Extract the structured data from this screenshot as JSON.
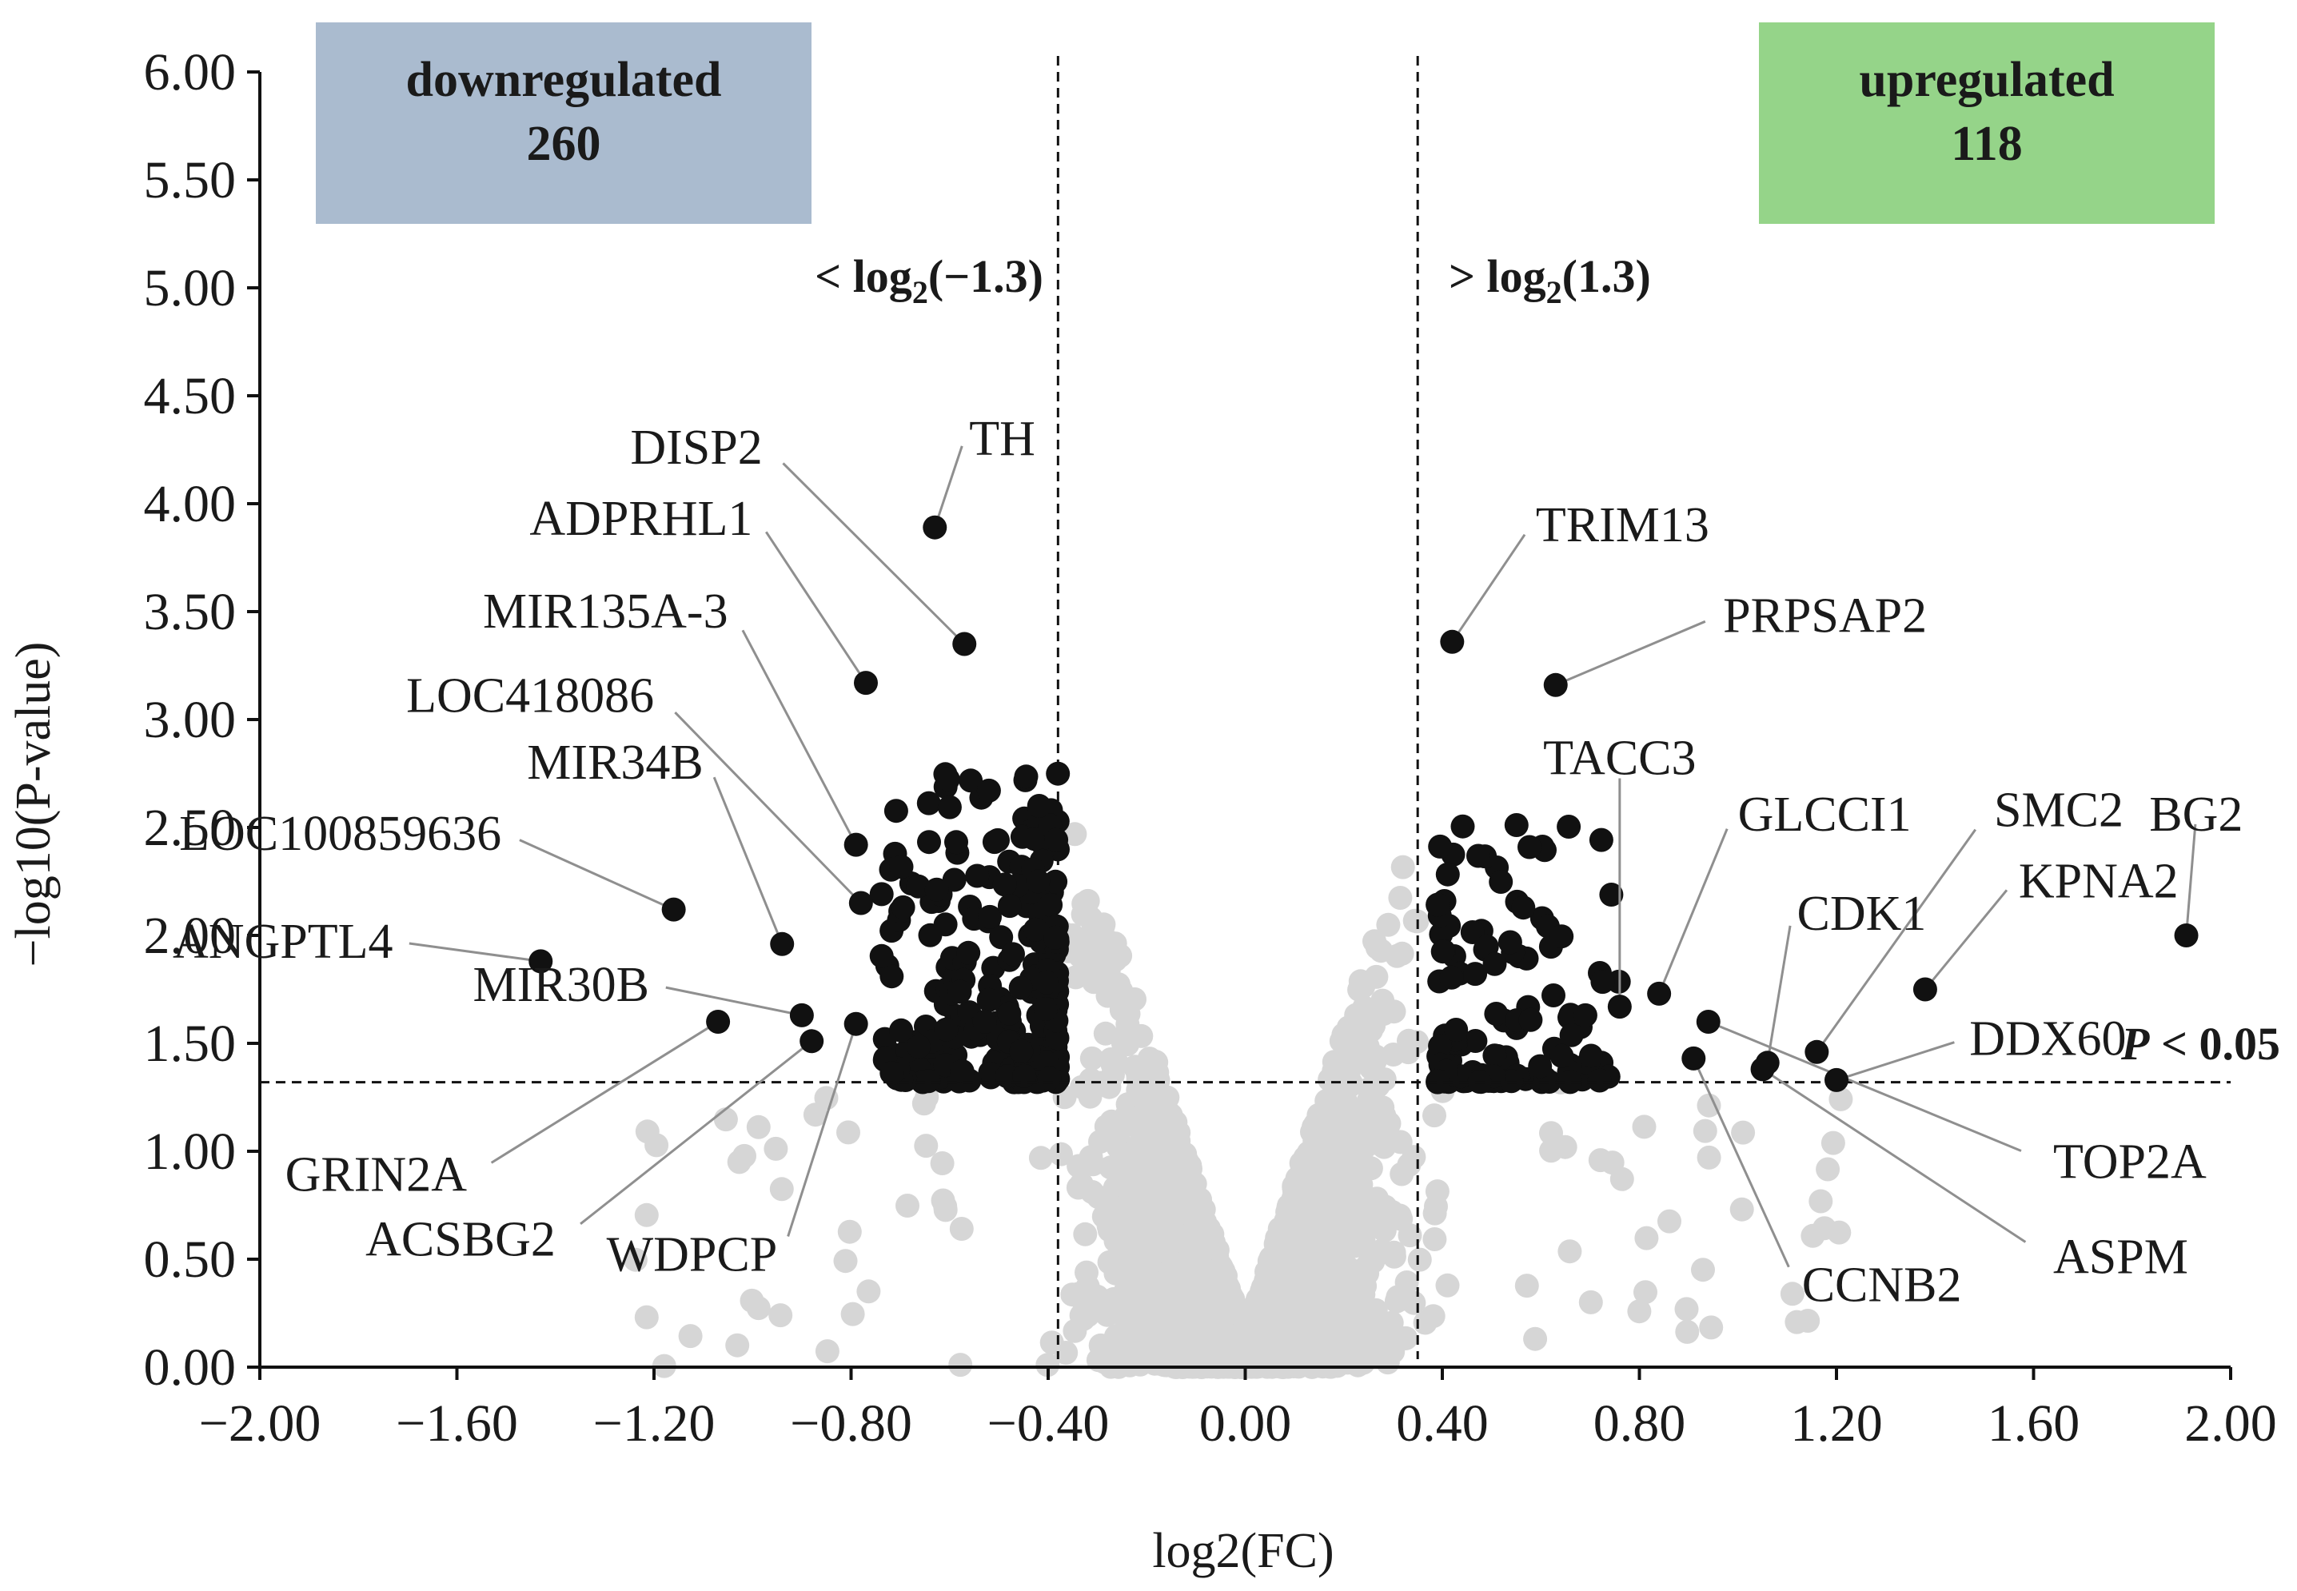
{
  "chart_data": {
    "type": "scatter",
    "title": "",
    "xlabel": "log2(FC)",
    "ylabel": "−log10(P-value)",
    "xlim": [
      -2.0,
      2.0
    ],
    "ylim": [
      0.0,
      6.0
    ],
    "x_ticks": [
      -2.0,
      -1.6,
      -1.2,
      -0.8,
      -0.4,
      0.0,
      0.4,
      0.8,
      1.2,
      1.6,
      2.0
    ],
    "x_tick_labels": [
      "−2.00",
      "−1.60",
      "−1.20",
      "−0.80",
      "−0.40",
      "0.00",
      "0.40",
      "0.80",
      "1.20",
      "1.60",
      "2.00"
    ],
    "y_ticks": [
      0.0,
      0.5,
      1.0,
      1.5,
      2.0,
      2.5,
      3.0,
      3.5,
      4.0,
      4.5,
      5.0,
      5.5,
      6.0
    ],
    "y_tick_labels": [
      "0.00",
      "0.50",
      "1.00",
      "1.50",
      "2.00",
      "2.50",
      "3.00",
      "3.50",
      "4.00",
      "4.50",
      "5.00",
      "5.50",
      "6.00"
    ],
    "thresholds": {
      "fc_low": -0.38,
      "fc_high": 0.35,
      "p": 1.32,
      "fc_low_label_prefix": "< log",
      "fc_low_label_sub": "2",
      "fc_low_label_suffix": "(−1.3)",
      "fc_high_label_prefix": "> log",
      "fc_high_label_sub": "2",
      "fc_high_label_suffix": "(1.3)",
      "p_label_italic": "P",
      "p_label_rest": " < 0.05"
    },
    "boxes": {
      "down": {
        "title": "downregulated",
        "count": "260",
        "color": "#aabbcf"
      },
      "up": {
        "title": "upregulated",
        "count": "118",
        "color": "#95d489"
      }
    },
    "colors": {
      "significant": "#111111",
      "nonsignificant": "#d6d6d6",
      "leader": "#8f8f8f"
    },
    "labeled_genes": [
      {
        "name": "TH",
        "x": -0.63,
        "y": 3.89,
        "label_x": -0.57,
        "label_y": 4.3
      },
      {
        "name": "DISP2",
        "x": -0.57,
        "y": 3.35,
        "label_x": -0.97,
        "label_y": 4.26
      },
      {
        "name": "ADPRHL1",
        "x": -0.77,
        "y": 3.17,
        "label_x": -0.99,
        "label_y": 3.93
      },
      {
        "name": "MIR135A-3",
        "x": -0.79,
        "y": 2.42,
        "label_x": -1.04,
        "label_y": 3.5
      },
      {
        "name": "LOC418086",
        "x": -0.78,
        "y": 2.15,
        "label_x": -1.19,
        "label_y": 3.11
      },
      {
        "name": "MIR34B",
        "x": -0.94,
        "y": 1.96,
        "label_x": -1.09,
        "label_y": 2.8
      },
      {
        "name": "LOC100859636",
        "x": -1.16,
        "y": 2.12,
        "label_x": -1.5,
        "label_y": 2.47
      },
      {
        "name": "ANGPTL4",
        "x": -1.43,
        "y": 1.88,
        "label_x": -1.72,
        "label_y": 1.97
      },
      {
        "name": "MIR30B",
        "x": -0.9,
        "y": 1.63,
        "label_x": -1.2,
        "label_y": 1.77
      },
      {
        "name": "GRIN2A",
        "x": -1.07,
        "y": 1.6,
        "label_x": -1.57,
        "label_y": 0.89
      },
      {
        "name": "ACSBG2",
        "x": -0.88,
        "y": 1.51,
        "label_x": -1.39,
        "label_y": 0.59
      },
      {
        "name": "WDPCP",
        "x": -0.79,
        "y": 1.59,
        "label_x": -0.94,
        "label_y": 0.52
      },
      {
        "name": "TRIM13",
        "x": 0.42,
        "y": 3.36,
        "label_x": 0.58,
        "label_y": 3.9
      },
      {
        "name": "PRPSAP2",
        "x": 0.63,
        "y": 3.16,
        "label_x": 0.96,
        "label_y": 3.48
      },
      {
        "name": "TACC3",
        "x": 0.76,
        "y": 1.67,
        "label_x": 0.76,
        "label_y": 2.82
      },
      {
        "name": "GLCCI1",
        "x": 0.84,
        "y": 1.73,
        "label_x": 0.99,
        "label_y": 2.56
      },
      {
        "name": "SMC2",
        "x": 1.16,
        "y": 1.46,
        "label_x": 1.51,
        "label_y": 2.58
      },
      {
        "name": "BG2",
        "x": 1.91,
        "y": 2.0,
        "label_x": 1.93,
        "label_y": 2.56
      },
      {
        "name": "KPNA2",
        "x": 1.38,
        "y": 1.75,
        "label_x": 1.56,
        "label_y": 2.25
      },
      {
        "name": "CDK1",
        "x": 1.06,
        "y": 1.41,
        "label_x": 1.11,
        "label_y": 2.1
      },
      {
        "name": "DDX60",
        "x": 1.2,
        "y": 1.33,
        "label_x": 1.46,
        "label_y": 1.52
      },
      {
        "name": "TOP2A",
        "x": 0.94,
        "y": 1.6,
        "label_x": 1.63,
        "label_y": 0.95
      },
      {
        "name": "CCNB2",
        "x": 0.91,
        "y": 1.43,
        "label_x": 1.12,
        "label_y": 0.38
      },
      {
        "name": "ASPM",
        "x": 1.05,
        "y": 1.38,
        "label_x": 1.63,
        "label_y": 0.51
      }
    ]
  }
}
